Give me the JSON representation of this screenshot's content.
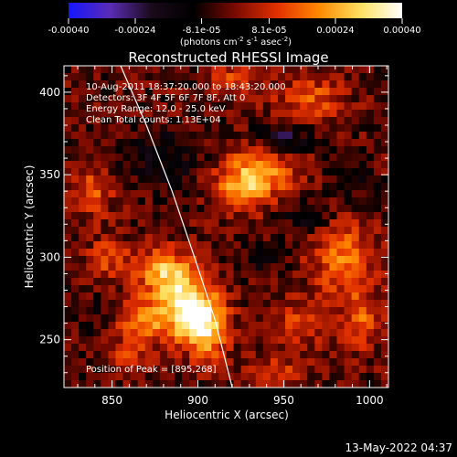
{
  "chart_data": {
    "type": "heatmap",
    "title": "Reconstructed RHESSI Image",
    "colorbar": {
      "tick_labels": [
        "-0.00040",
        "-0.00024",
        "-8.1e-05",
        "8.1e-05",
        "0.00024",
        "0.00040"
      ],
      "tick_values": [
        -0.0004,
        -0.00024,
        -8.1e-05,
        8.1e-05,
        0.00024,
        0.0004
      ],
      "range": [
        -0.0004,
        0.0004
      ],
      "unit_text": "(photons cm",
      "unit_sup1": "-2",
      "unit_mid": " s",
      "unit_sup2": "-1",
      "unit_end": " asec",
      "unit_sup3": "-2",
      "unit_close": ")",
      "colormap": [
        "#1616ff",
        "#5a2cb4",
        "#1a0a1a",
        "#000000",
        "#7a0a00",
        "#e23000",
        "#ff8800",
        "#ffe060",
        "#ffffff"
      ]
    },
    "xlabel": "Heliocentric X (arcsec)",
    "ylabel": "Heliocentric Y (arcsec)",
    "xlim": [
      822,
      1011
    ],
    "ylim": [
      221,
      416
    ],
    "x_ticks": [
      850,
      900,
      950,
      1000
    ],
    "y_ticks": [
      250,
      300,
      350,
      400
    ],
    "annotations": [
      "10-Aug-2011 18:37:20.000 to 18:43:20.000",
      "Detectors: 3F 4F 5F 6F 7F 8F, Att 0",
      "Energy Range: 12.0 - 25.0 keV",
      "Clean     Total counts: 1.13E+04"
    ],
    "peak_label": "Position of Peak = [895,268]",
    "peak": [
      895,
      268
    ],
    "limb_curve": [
      [
        855,
        416
      ],
      [
        870,
        380
      ],
      [
        885,
        340
      ],
      [
        898,
        300
      ],
      [
        910,
        262
      ],
      [
        920,
        221
      ]
    ],
    "blobs": [
      {
        "x": 895,
        "y": 268,
        "amp": 0.0004,
        "sx": 11,
        "sy": 12
      },
      {
        "x": 882,
        "y": 290,
        "amp": 0.0003,
        "sx": 12,
        "sy": 10
      },
      {
        "x": 905,
        "y": 255,
        "amp": 0.00026,
        "sx": 9,
        "sy": 12
      },
      {
        "x": 868,
        "y": 262,
        "amp": 0.00022,
        "sx": 10,
        "sy": 9
      },
      {
        "x": 935,
        "y": 352,
        "amp": 0.00026,
        "sx": 16,
        "sy": 10
      },
      {
        "x": 925,
        "y": 338,
        "amp": 0.0002,
        "sx": 10,
        "sy": 8
      },
      {
        "x": 838,
        "y": 340,
        "amp": 0.00016,
        "sx": 9,
        "sy": 11
      },
      {
        "x": 848,
        "y": 300,
        "amp": 0.00014,
        "sx": 8,
        "sy": 9
      },
      {
        "x": 985,
        "y": 300,
        "amp": 0.0002,
        "sx": 13,
        "sy": 16
      },
      {
        "x": 995,
        "y": 262,
        "amp": 0.00016,
        "sx": 8,
        "sy": 12
      },
      {
        "x": 960,
        "y": 260,
        "amp": 0.00014,
        "sx": 10,
        "sy": 9
      },
      {
        "x": 965,
        "y": 395,
        "amp": 0.00016,
        "sx": 14,
        "sy": 10
      },
      {
        "x": 920,
        "y": 408,
        "amp": 0.00014,
        "sx": 9,
        "sy": 6
      },
      {
        "x": 945,
        "y": 232,
        "amp": 0.00012,
        "sx": 12,
        "sy": 6
      },
      {
        "x": 860,
        "y": 240,
        "amp": 0.0001,
        "sx": 10,
        "sy": 8
      },
      {
        "x": 880,
        "y": 360,
        "amp": -0.00012,
        "sx": 18,
        "sy": 12
      },
      {
        "x": 950,
        "y": 372,
        "amp": -0.00018,
        "sx": 10,
        "sy": 7
      },
      {
        "x": 965,
        "y": 325,
        "amp": -0.00012,
        "sx": 9,
        "sy": 7
      },
      {
        "x": 990,
        "y": 348,
        "amp": -0.0001,
        "sx": 9,
        "sy": 10
      },
      {
        "x": 935,
        "y": 300,
        "amp": -8e-05,
        "sx": 9,
        "sy": 8
      },
      {
        "x": 840,
        "y": 262,
        "amp": -6e-05,
        "sx": 8,
        "sy": 10
      }
    ]
  },
  "timestamp": "13-May-2022 04:37"
}
